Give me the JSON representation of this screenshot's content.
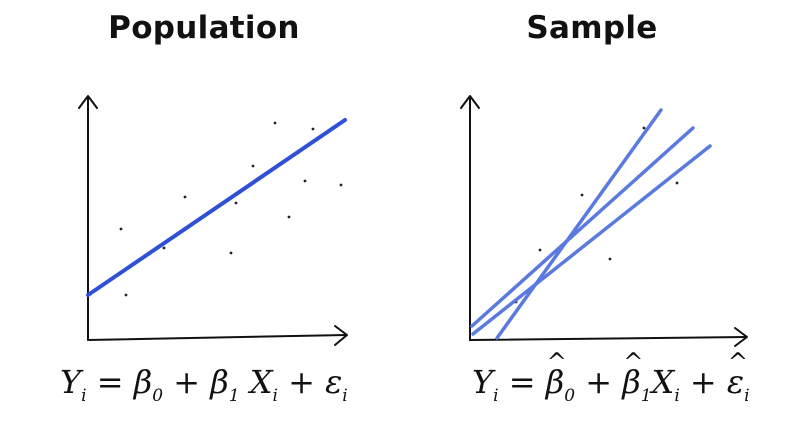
{
  "population": {
    "title": "Population",
    "equation": {
      "lhs": "Y",
      "lhs_sub": "i",
      "eq": " = ",
      "b0": "β",
      "b0_sub": "0",
      "plus1": " + ",
      "b1": "β",
      "b1_sub": "1",
      "x": " X",
      "x_sub": "i",
      "plus2": " + ",
      "err": "ε",
      "err_sub": "i"
    }
  },
  "sample": {
    "title": "Sample",
    "equation": {
      "lhs": "Y",
      "lhs_sub": "i",
      "eq": " = ",
      "b0": "β",
      "b0_sub": "0",
      "plus1": " + ",
      "b1": "β",
      "b1_sub": "1",
      "x": "X",
      "x_sub": "i",
      "plus2": " + ",
      "err": "ε",
      "err_sub": "i"
    }
  },
  "colors": {
    "population_line": "#2e4fd6",
    "sample_lines": "#5b7ae0",
    "axes": "#111111",
    "points": "#222222"
  }
}
